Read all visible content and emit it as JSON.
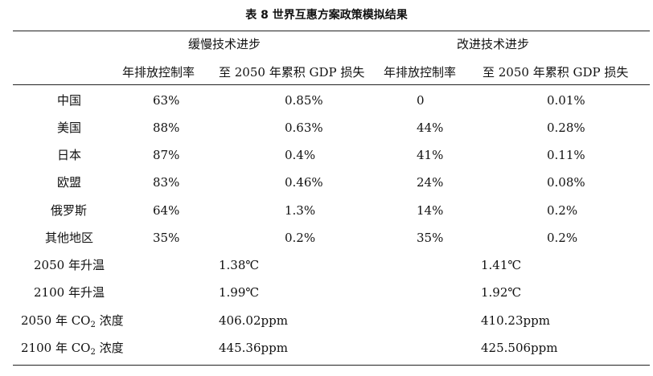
{
  "table": {
    "title": "表 8  世界互惠方案政策模拟结果",
    "groups": [
      "缓慢技术进步",
      "改进技术进步"
    ],
    "subheaders": [
      "年排放控制率",
      "至 2050 年累积 GDP 损失",
      "年排放控制率",
      "至 2050 年累积 GDP 损失"
    ],
    "rows": [
      {
        "region": "中国",
        "slow_rate": "63%",
        "slow_gdp": "0.85%",
        "fast_rate": "0",
        "fast_gdp": "0.01%"
      },
      {
        "region": "美国",
        "slow_rate": "88%",
        "slow_gdp": "0.63%",
        "fast_rate": "44%",
        "fast_gdp": "0.28%"
      },
      {
        "region": "日本",
        "slow_rate": "87%",
        "slow_gdp": "0.4%",
        "fast_rate": "41%",
        "fast_gdp": "0.11%"
      },
      {
        "region": "欧盟",
        "slow_rate": "83%",
        "slow_gdp": "0.46%",
        "fast_rate": "24%",
        "fast_gdp": "0.08%"
      },
      {
        "region": "俄罗斯",
        "slow_rate": "64%",
        "slow_gdp": "1.3%",
        "fast_rate": "14%",
        "fast_gdp": "0.2%"
      },
      {
        "region": "其他地区",
        "slow_rate": "35%",
        "slow_gdp": "0.2%",
        "fast_rate": "35%",
        "fast_gdp": "0.2%"
      }
    ],
    "summary": [
      {
        "label": "2050 年升温",
        "slow": "1.38℃",
        "fast": "1.41℃"
      },
      {
        "label": "2100 年升温",
        "slow": "1.99℃",
        "fast": "1.92℃"
      },
      {
        "label_pre": "2050 年 CO",
        "label_sub": "2",
        "label_post": " 浓度",
        "slow": "406.02ppm",
        "fast": "410.23ppm"
      },
      {
        "label_pre": "2100 年 CO",
        "label_sub": "2",
        "label_post": " 浓度",
        "slow": "445.36ppm",
        "fast": "425.506ppm"
      }
    ]
  }
}
